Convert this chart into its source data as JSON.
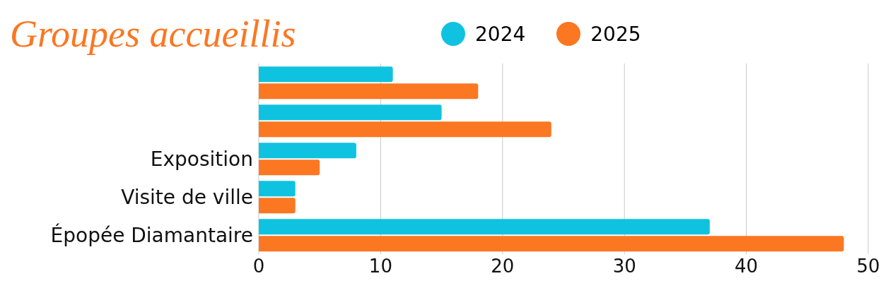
{
  "chart_data": {
    "type": "bar",
    "orientation": "horizontal",
    "title": "Groupes accueillis",
    "categories": [
      null,
      null,
      "Exposition",
      "Visite de ville",
      "Épopée Diamantaire"
    ],
    "series": [
      {
        "name": "2024",
        "color": "#0fc3e0",
        "values": [
          11,
          15,
          8,
          3,
          37
        ]
      },
      {
        "name": "2025",
        "color": "#fb7722",
        "values": [
          18,
          24,
          5,
          3,
          48
        ]
      }
    ],
    "xlim": [
      0,
      50
    ],
    "xticks": [
      0,
      10,
      20,
      30,
      40,
      50
    ],
    "grid": "x",
    "legend": "top"
  }
}
